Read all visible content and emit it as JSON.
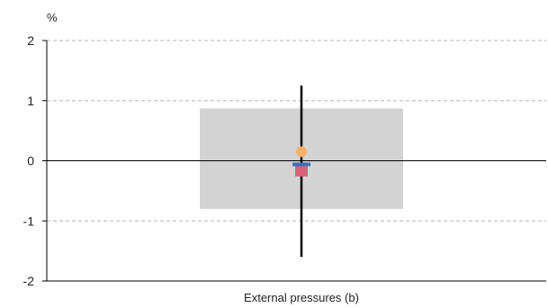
{
  "chart_data": {
    "type": "box",
    "y_unit": "%",
    "ylim": [
      -2,
      2
    ],
    "y_ticks": [
      "2",
      "1",
      "0",
      "-1",
      "-2"
    ],
    "y_tick_values": [
      2,
      1,
      0,
      -1,
      -2
    ],
    "grid": true,
    "categories": [
      "External pressures (b)"
    ],
    "range_box": {
      "low": -0.8,
      "high": 0.87,
      "color": "#d3d3d3"
    },
    "whisker": {
      "low": -1.6,
      "high": 1.25,
      "color": "#000000"
    },
    "markers": [
      {
        "shape": "circle",
        "value": 0.15,
        "color": "#f5b26b"
      },
      {
        "shape": "square",
        "value": -0.17,
        "color": "#d9607a"
      },
      {
        "shape": "line",
        "value": -0.06,
        "color": "#3d6fb6"
      }
    ]
  }
}
